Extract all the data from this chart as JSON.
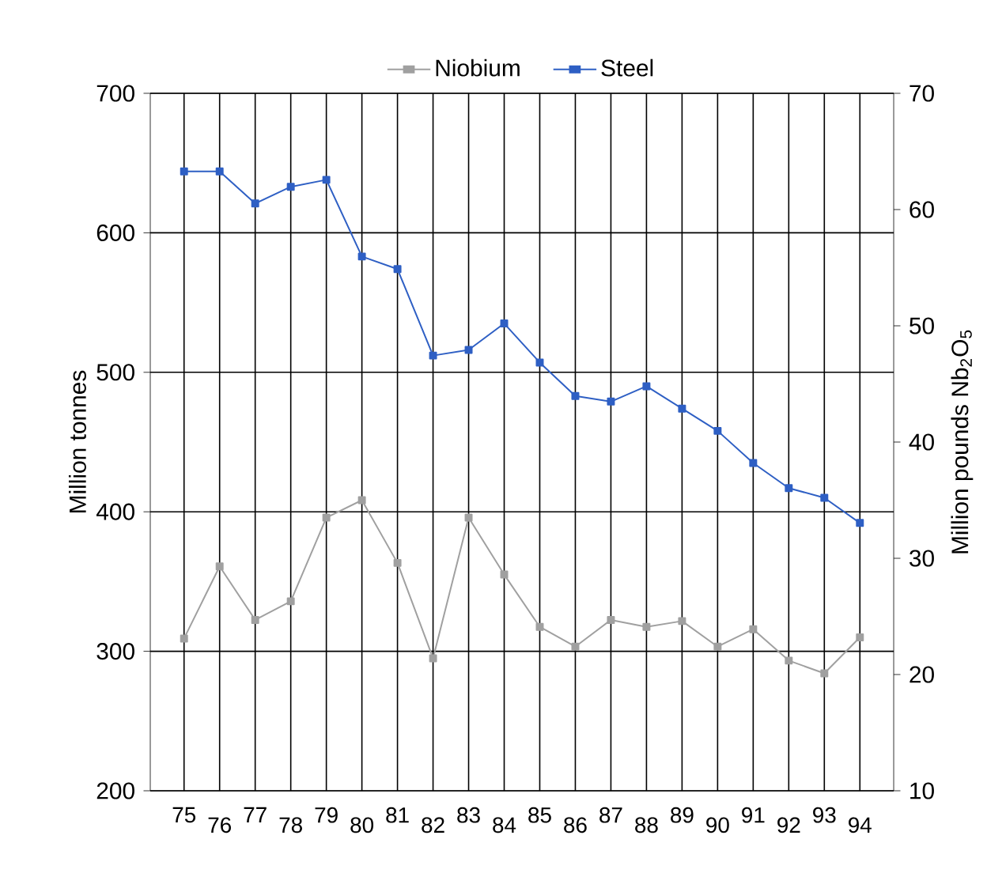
{
  "chart_data": {
    "type": "line",
    "ylabel": "Million tonnes",
    "y2label": "Million pounds Nb$_{2}$O$_{5}$",
    "categories": [
      "75",
      "76",
      "77",
      "78",
      "79",
      "80",
      "81",
      "82",
      "83",
      "84",
      "85",
      "86",
      "87",
      "88",
      "89",
      "90",
      "91",
      "92",
      "93",
      "94"
    ],
    "series": [
      {
        "name": "Niobium",
        "color": "#a0a0a0",
        "axis": "y2",
        "values": [
          23.1,
          29.3,
          24.7,
          26.3,
          33.5,
          35.0,
          29.6,
          21.4,
          33.5,
          28.6,
          24.1,
          22.4,
          24.7,
          24.1,
          24.6,
          22.4,
          23.9,
          21.2,
          20.1,
          23.2
        ]
      },
      {
        "name": "Steel",
        "color": "#2e5fc4",
        "values": [
          644,
          644,
          621,
          633,
          638,
          583,
          574,
          512,
          516,
          535,
          507,
          483,
          479,
          490,
          474,
          458,
          435,
          417,
          410,
          392
        ]
      }
    ],
    "ylim": [
      200,
      700
    ],
    "yticks": [
      200,
      300,
      400,
      500,
      600,
      700
    ],
    "y2lim": [
      10,
      70
    ],
    "y2ticks": [
      10,
      20,
      30,
      40,
      50,
      60,
      70
    ],
    "grid": true,
    "legend": "top",
    "marker": "square",
    "line_style": "solid"
  }
}
